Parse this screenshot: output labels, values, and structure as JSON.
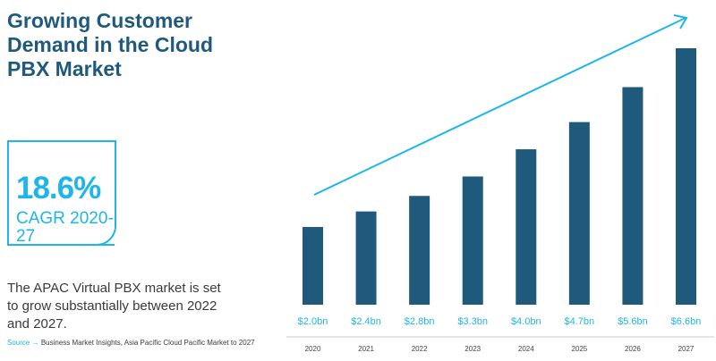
{
  "headline": {
    "title": "Growing Customer Demand in the Cloud PBX Market"
  },
  "cagr": {
    "value": "18.6%",
    "label": "CAGR 2020-27"
  },
  "description": "The APAC Virtual PBX market is set to grow substantially between 2022 and 2027.",
  "source": {
    "label": "Source",
    "arrow": "→",
    "text": "Business Market Insights, Asia Pacific Cloud Pacific Market to 2027"
  },
  "colors": {
    "bar": "#1f5a7d",
    "accent": "#1eb6ea",
    "title": "#1f5a7d"
  },
  "chart_data": {
    "type": "bar",
    "categories": [
      "2020",
      "2021",
      "2022",
      "2023",
      "2024",
      "2025",
      "2026",
      "2027"
    ],
    "values": [
      2.0,
      2.4,
      2.8,
      3.3,
      4.0,
      4.7,
      5.6,
      6.6
    ],
    "value_labels": [
      "$2.0bn",
      "$2.4bn",
      "$2.8bn",
      "$3.3bn",
      "$4.0bn",
      "$4.7bn",
      "$5.6bn",
      "$6.6bn"
    ],
    "ylim": [
      0,
      6.6
    ],
    "grid": false,
    "trend_arrow": true
  }
}
